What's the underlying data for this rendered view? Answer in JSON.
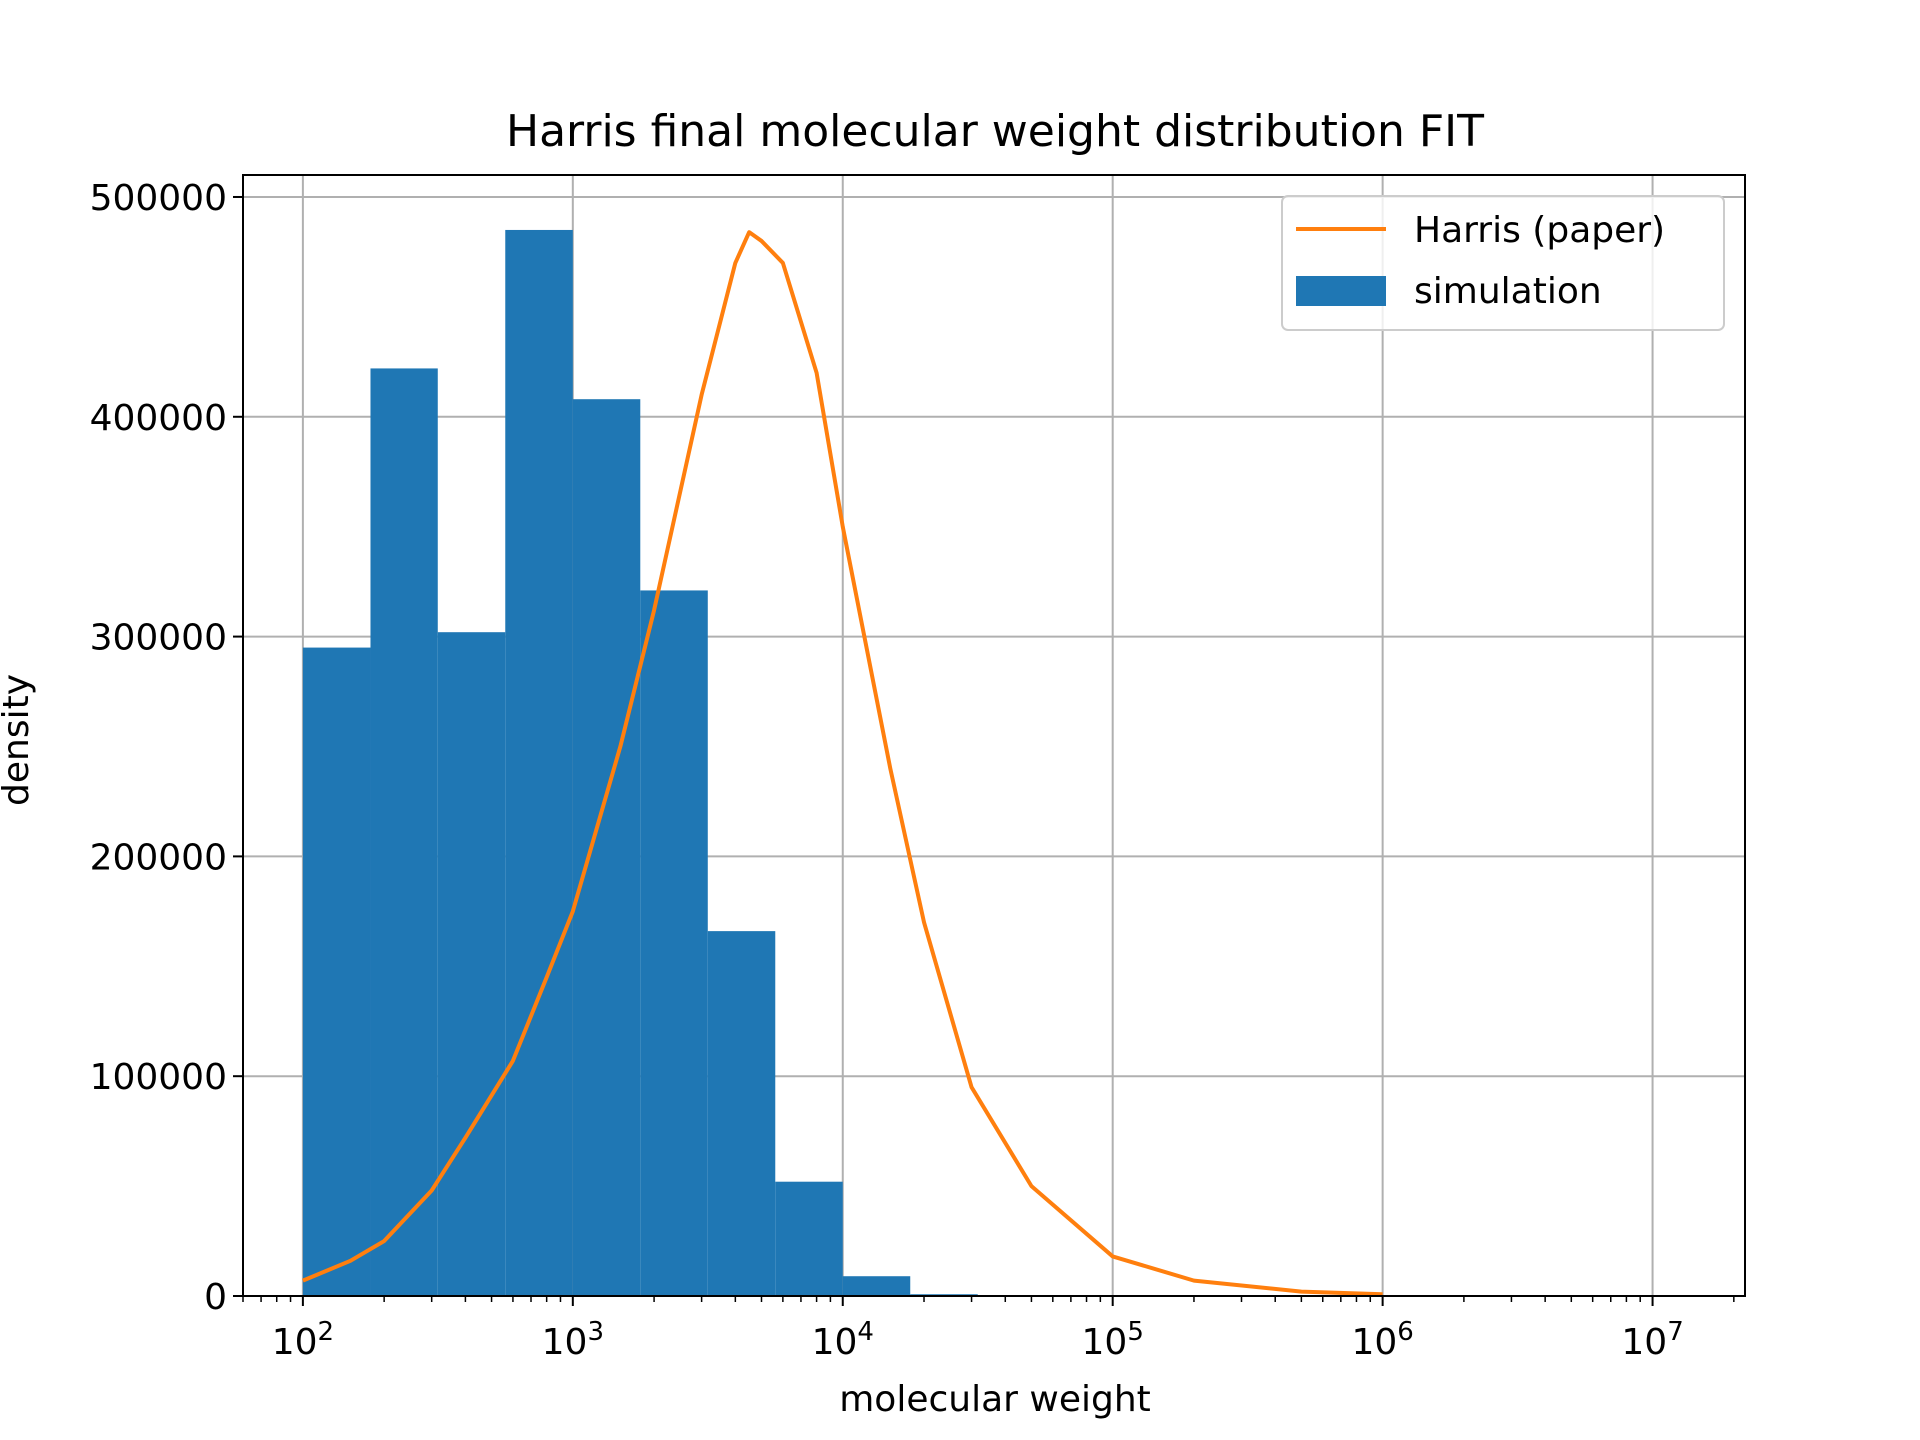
{
  "chart_data": {
    "type": "bar",
    "title": "Harris final molecular weight distribution FIT",
    "xlabel": "molecular weight",
    "ylabel": "density",
    "x_scale": "log",
    "xlim": [
      60,
      22000000
    ],
    "ylim": [
      0,
      510000
    ],
    "grid": true,
    "legend_position": "upper right",
    "x_ticks": [
      {
        "value": 100,
        "base": "10",
        "exp": "2"
      },
      {
        "value": 1000,
        "base": "10",
        "exp": "3"
      },
      {
        "value": 10000,
        "base": "10",
        "exp": "4"
      },
      {
        "value": 100000,
        "base": "10",
        "exp": "5"
      },
      {
        "value": 1000000,
        "base": "10",
        "exp": "6"
      },
      {
        "value": 10000000,
        "base": "10",
        "exp": "7"
      }
    ],
    "y_ticks": [
      {
        "value": 0,
        "label": "0"
      },
      {
        "value": 100000,
        "label": "100000"
      },
      {
        "value": 200000,
        "label": "200000"
      },
      {
        "value": 300000,
        "label": "300000"
      },
      {
        "value": 400000,
        "label": "400000"
      },
      {
        "value": 500000,
        "label": "500000"
      }
    ],
    "series": [
      {
        "name": "simulation",
        "kind": "histogram",
        "color": "#1f77b4",
        "bin_edges": [
          100,
          178,
          316,
          562,
          1000,
          1778,
          3162,
          5623,
          10000,
          17783,
          31623
        ],
        "values": [
          295000,
          422000,
          302000,
          485000,
          408000,
          321000,
          166000,
          52000,
          9000,
          800
        ]
      },
      {
        "name": "Harris (paper)",
        "kind": "line",
        "color": "#ff7f0e",
        "x": [
          100,
          150,
          200,
          300,
          400,
          600,
          800,
          1000,
          1500,
          2000,
          3000,
          4000,
          4500,
          5000,
          6000,
          8000,
          10000,
          15000,
          20000,
          30000,
          50000,
          100000,
          200000,
          500000,
          1000000
        ],
        "y": [
          7000,
          16000,
          25000,
          48000,
          72000,
          107000,
          145000,
          175000,
          250000,
          312000,
          410000,
          470000,
          484000,
          480000,
          470000,
          420000,
          350000,
          240000,
          170000,
          95000,
          50000,
          18000,
          7000,
          2000,
          800
        ]
      }
    ]
  }
}
